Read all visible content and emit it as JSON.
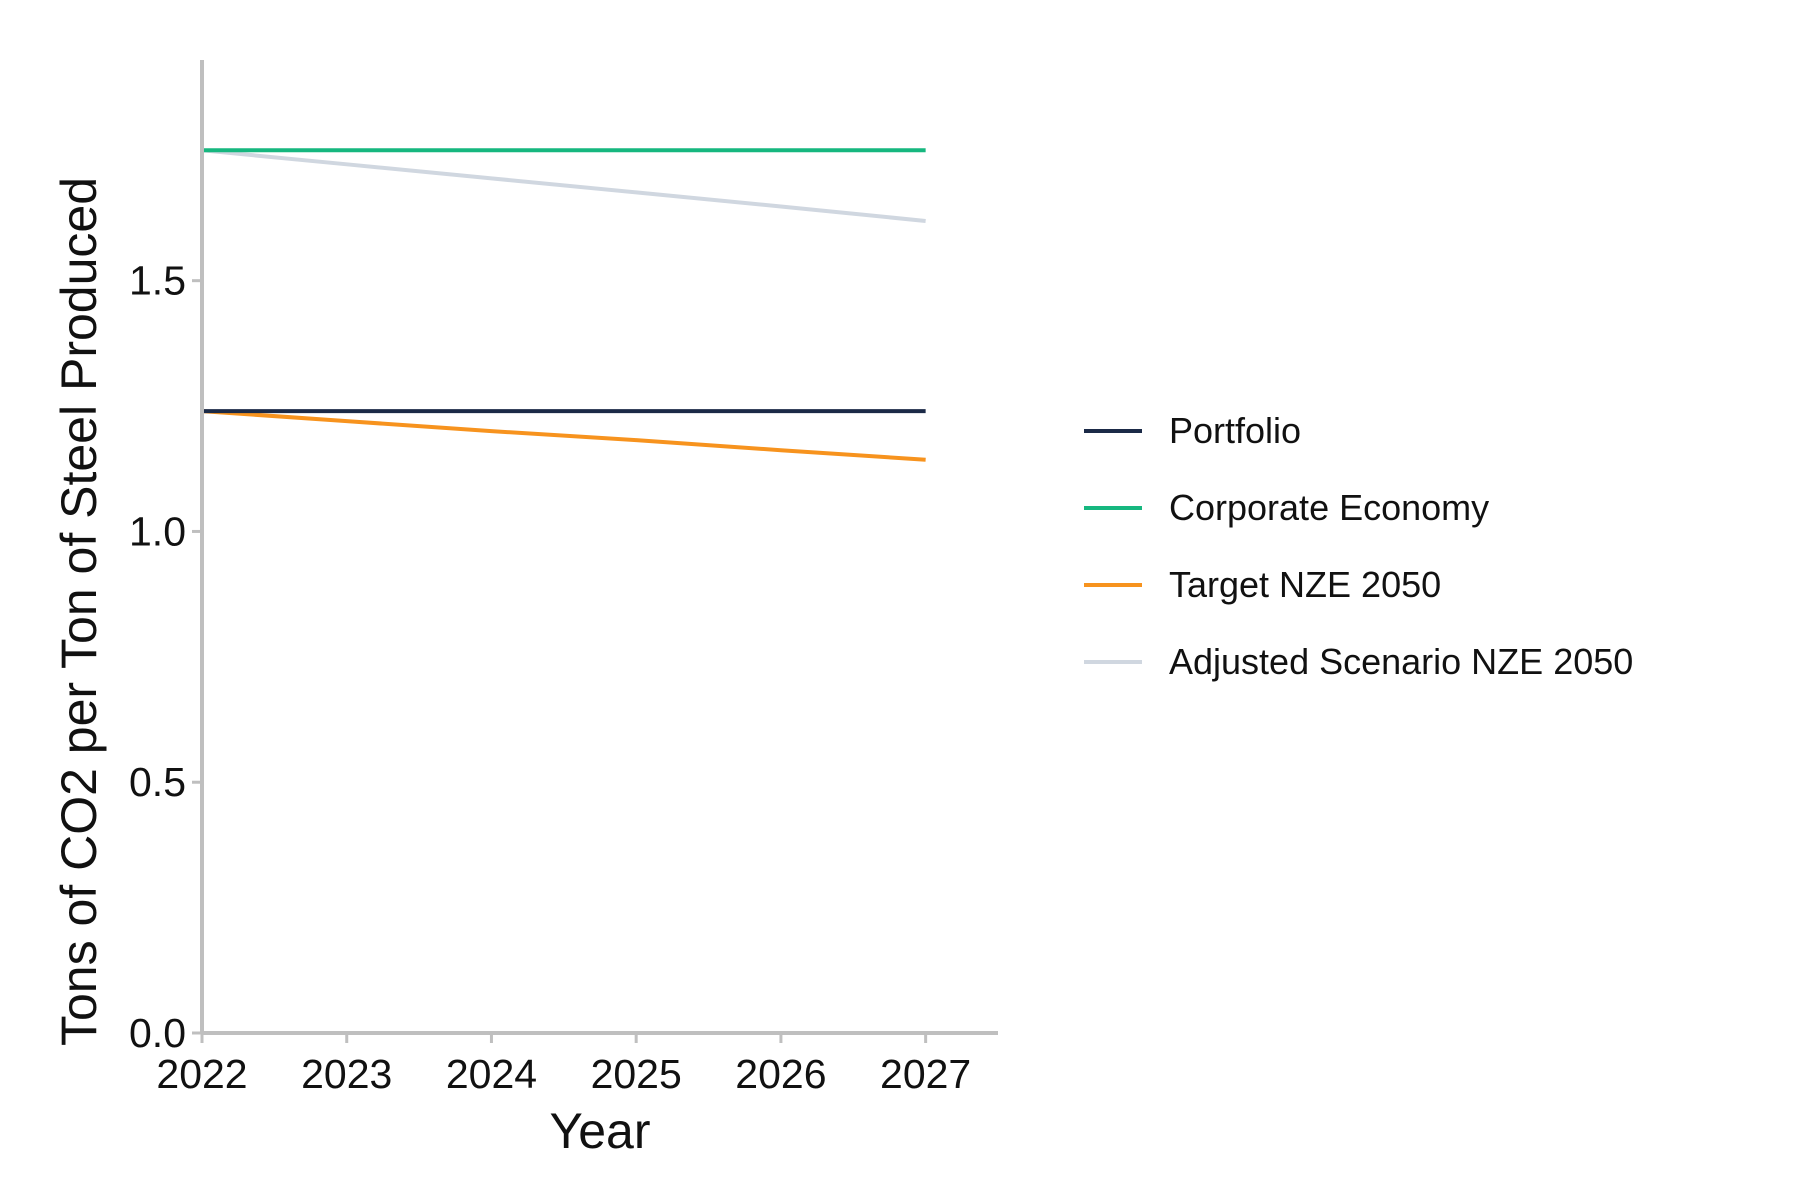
{
  "chart_data": {
    "type": "line",
    "title": "",
    "xlabel": "Year",
    "ylabel": "Tons of CO2 per Ton of Steel Produced",
    "x": [
      2022,
      2023,
      2024,
      2025,
      2026,
      2027
    ],
    "xlim": [
      2022,
      2027.5
    ],
    "ylim": [
      0,
      1.94
    ],
    "xticks": [
      2022,
      2023,
      2024,
      2025,
      2026,
      2027
    ],
    "yticks": [
      0.0,
      0.5,
      1.0,
      1.5
    ],
    "ytick_labels": [
      "0.0",
      "0.5",
      "1.0",
      "1.5"
    ],
    "grid": false,
    "legend_position": "right",
    "series": [
      {
        "name": "Portfolio",
        "color": "#1b2a47",
        "values": [
          1.24,
          1.24,
          1.24,
          1.24,
          1.24,
          1.24
        ]
      },
      {
        "name": "Corporate Economy",
        "color": "#16b77f",
        "values": [
          1.76,
          1.76,
          1.76,
          1.76,
          1.76,
          1.76
        ]
      },
      {
        "name": "Target NZE 2050",
        "color": "#f7931e",
        "values": [
          1.24,
          1.22,
          1.2,
          1.182,
          1.162,
          1.143
        ]
      },
      {
        "name": "Adjusted Scenario NZE 2050",
        "color": "#d0d7e0",
        "values": [
          1.76,
          1.732,
          1.704,
          1.676,
          1.648,
          1.619
        ]
      }
    ]
  }
}
